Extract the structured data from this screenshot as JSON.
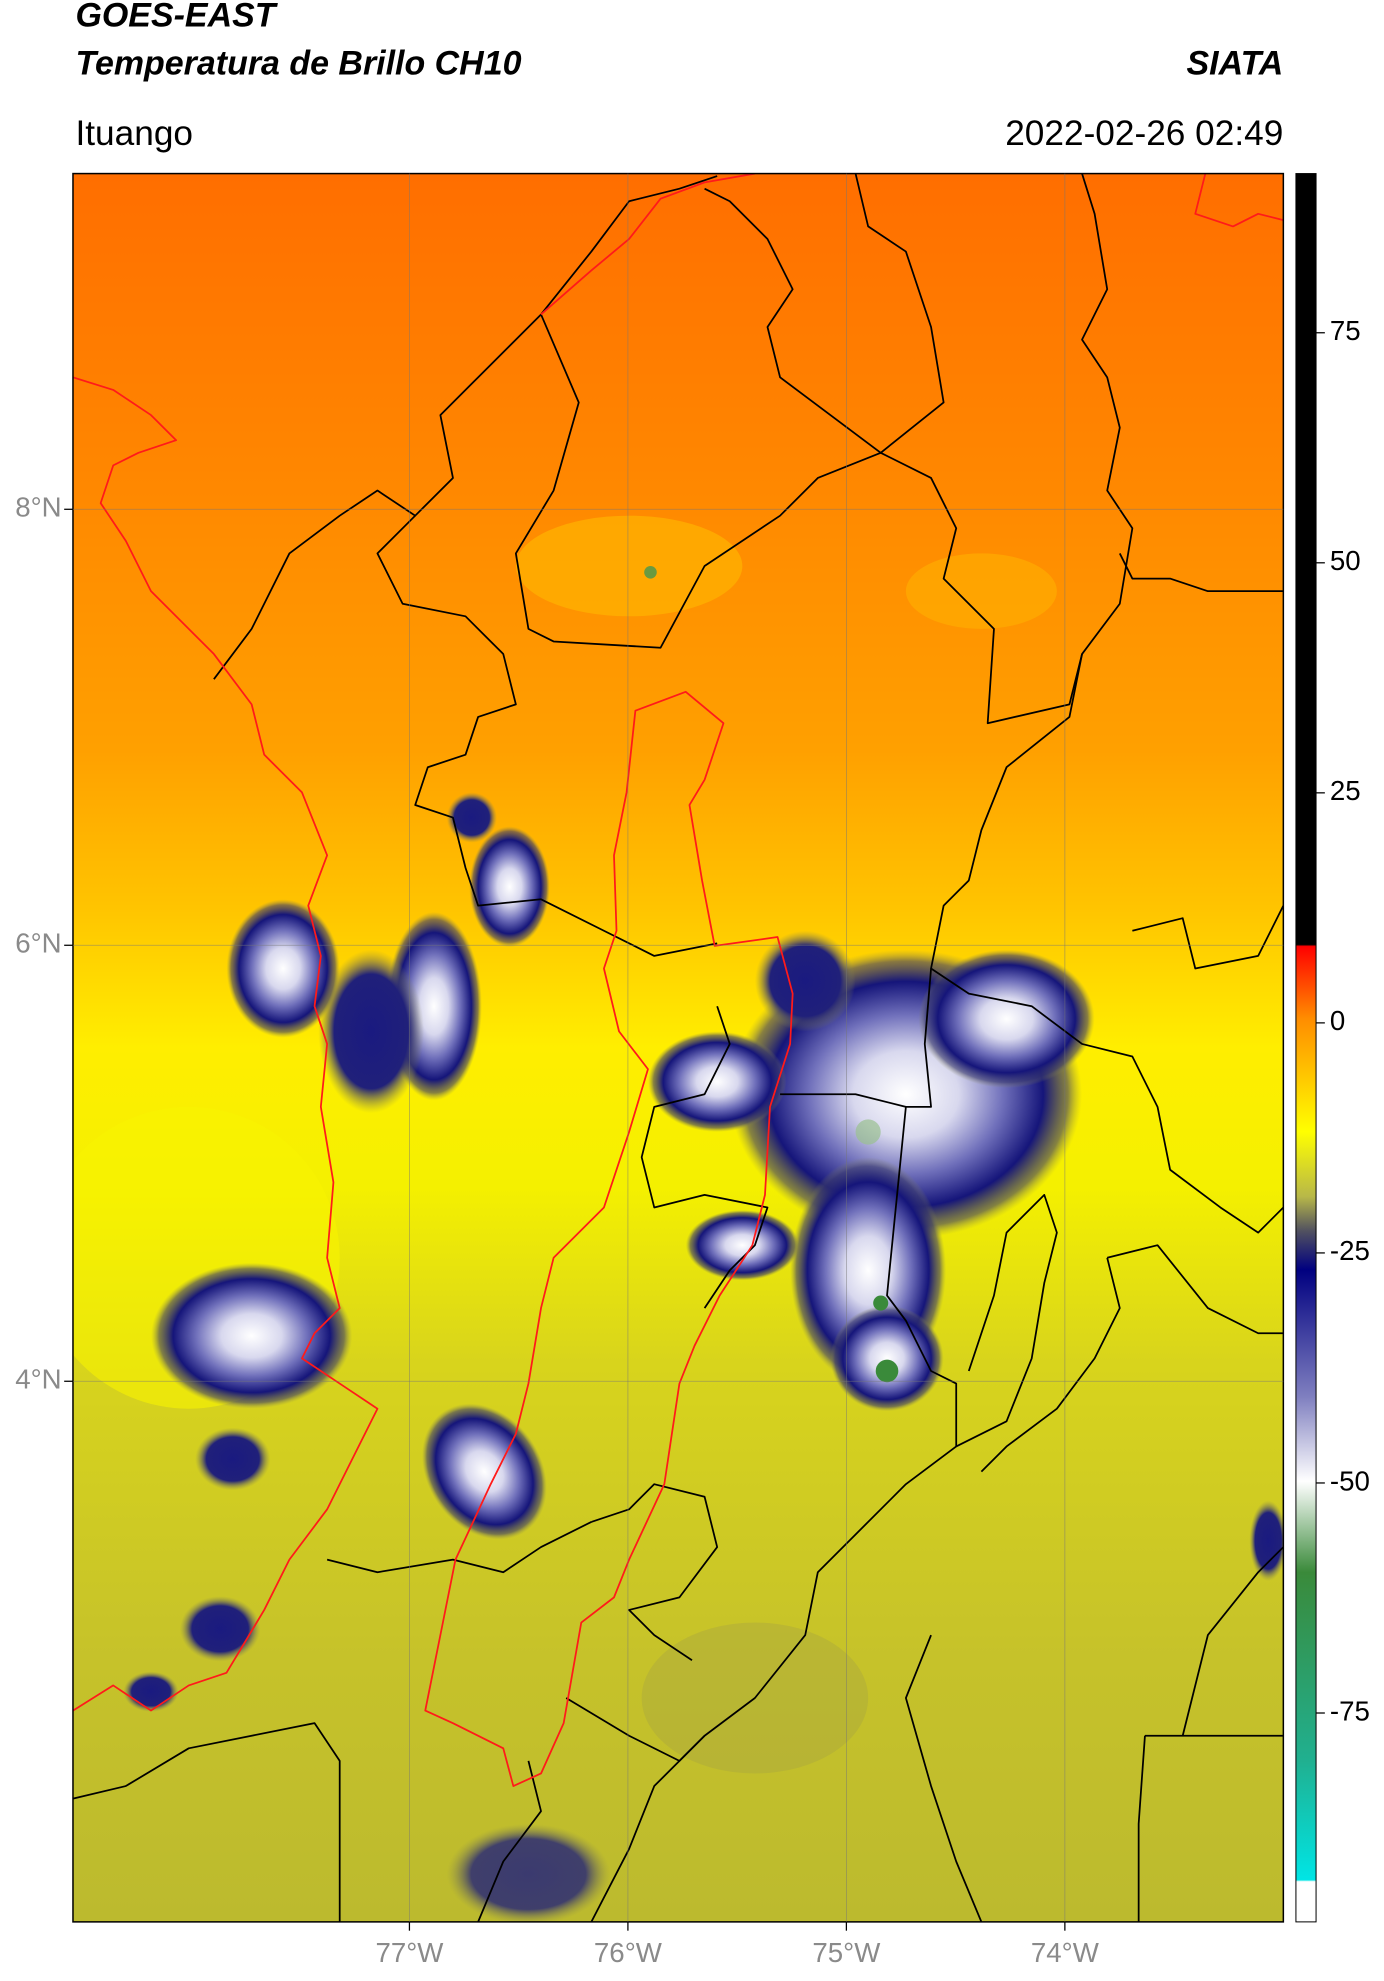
{
  "chart_data": {
    "type": "map",
    "title": "GOES-EAST",
    "subtitle": "Temperatura de Brillo CH10",
    "source": "SIATA",
    "location": "Ituango",
    "timestamp": "2022-02-26 02:49",
    "xlim": [
      -78.54,
      -73.0
    ],
    "xticks": [
      {
        "value": -77,
        "label": "77°W"
      },
      {
        "value": -76,
        "label": "76°W"
      },
      {
        "value": -75,
        "label": "75°W"
      },
      {
        "value": -74,
        "label": "74°W"
      }
    ],
    "ylim": [
      1.52,
      9.54
    ],
    "yticks": [
      {
        "value": 8,
        "label": "8°N"
      },
      {
        "value": 6,
        "label": "6°N"
      },
      {
        "value": 4,
        "label": "4°N"
      }
    ],
    "grid": true,
    "colorbar": {
      "lim": [
        -97.7,
        92.3
      ],
      "ticks": [
        75,
        50,
        25,
        0,
        -25,
        -50,
        -75
      ]
    }
  }
}
